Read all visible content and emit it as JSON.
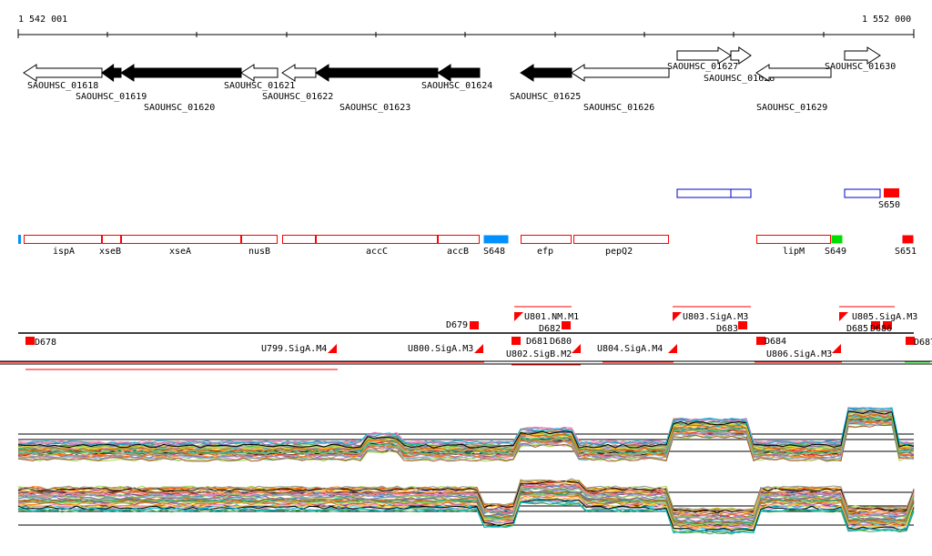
{
  "ruler": {
    "start_label": "1 542 001",
    "end_label": "1 552 000"
  },
  "genes": [
    "SAOUHSC_01618",
    "SAOUHSC_01619",
    "SAOUHSC_01620",
    "SAOUHSC_01621",
    "SAOUHSC_01622",
    "SAOUHSC_01623",
    "SAOUHSC_01624",
    "SAOUHSC_01625",
    "SAOUHSC_01626",
    "SAOUHSC_01627",
    "SAOUHSC_01628",
    "SAOUHSC_01629",
    "SAOUHSC_01630"
  ],
  "features_row1": [
    "S650"
  ],
  "features_row2": [
    "ispA",
    "xseB",
    "xseA",
    "nusB",
    "accC",
    "accB",
    "S648",
    "efp",
    "pepQ2",
    "lipM",
    "S649",
    "S651"
  ],
  "signals": [
    "D678",
    "D679",
    "U799.SigA.M4",
    "U800.SigA.M3",
    "U801.NM.M1",
    "D682",
    "D681",
    "D680",
    "U802.SigB.M2",
    "U804.SigA.M4",
    "U803.SigA.M3",
    "D683",
    "D684",
    "U806.SigA.M3",
    "U805.SigA.M3",
    "D685",
    "D686",
    "D687"
  ],
  "colors": {
    "gene_fill": "#000000",
    "feature": "#ff0000",
    "blue": "#0000cc",
    "cyan": "#0090ff",
    "green": "#00dd00"
  }
}
